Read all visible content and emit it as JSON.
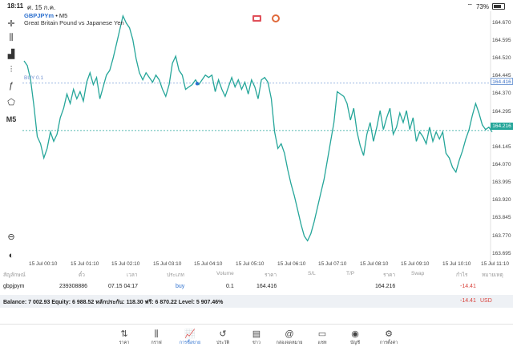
{
  "status_bar": {
    "time": "18:11",
    "date": "ศ. 15 ก.ค.",
    "battery": "73%"
  },
  "chart": {
    "symbol": "GBPJPYm",
    "timeframe": "M5",
    "symbol_line_sep": " • ",
    "description": "Great Britain Pound vs Japanese Yen",
    "timeframe_button": "M5",
    "buy_line_label": "BUY 0.1",
    "buy_price_tag": "164.416",
    "bid_price_tag": "164.216",
    "y_ticks": [
      "164.670",
      "164.595",
      "164.520",
      "164.445",
      "164.370",
      "164.295",
      "164.145",
      "164.070",
      "163.995",
      "163.920",
      "163.845",
      "163.770",
      "163.695"
    ],
    "x_ticks": [
      "15 Jul 00:10",
      "15 Jul 01:10",
      "15 Jul 02:10",
      "15 Jul 03:10",
      "15 Jul 04:10",
      "15 Jul 05:10",
      "15 Jul 06:10",
      "15 Jul 07:10",
      "15 Jul 08:10",
      "15 Jul 09:10",
      "15 Jul 10:10",
      "15 Jul 11:10"
    ],
    "colors": {
      "line": "#26a69a",
      "buy_line": "#7aa0d8",
      "bid_line": "#26a69a"
    }
  },
  "chart_data": {
    "type": "line",
    "series": [
      {
        "values": [
          164.51,
          164.49,
          164.43,
          164.32,
          164.19,
          164.16,
          164.1,
          164.14,
          164.21,
          164.17,
          164.2,
          164.27,
          164.31,
          164.37,
          164.33,
          164.39,
          164.35,
          164.38,
          164.34,
          164.42,
          164.46,
          164.41,
          164.44,
          164.35,
          164.4,
          164.45,
          164.47,
          164.52,
          164.58,
          164.64,
          164.7,
          164.67,
          164.65,
          164.6,
          164.52,
          164.46,
          164.43,
          164.46,
          164.44,
          164.42,
          164.45,
          164.43,
          164.39,
          164.36,
          164.41,
          164.5,
          164.53,
          164.47,
          164.45,
          164.39,
          164.4,
          164.41,
          164.43,
          164.41,
          164.43,
          164.45,
          164.44,
          164.45,
          164.38,
          164.43,
          164.39,
          164.36,
          164.4,
          164.44,
          164.4,
          164.43,
          164.39,
          164.42,
          164.37,
          164.43,
          164.4,
          164.35,
          164.43,
          164.44,
          164.42,
          164.35,
          164.21,
          164.14,
          164.16,
          164.12,
          164.05,
          163.99,
          163.94,
          163.88,
          163.82,
          163.77,
          163.75,
          163.78,
          163.83,
          163.89,
          163.95,
          164.01,
          164.09,
          164.17,
          164.25,
          164.38,
          164.37,
          164.36,
          164.33,
          164.26,
          164.31,
          164.21,
          164.15,
          164.11,
          164.2,
          164.25,
          164.17,
          164.23,
          164.3,
          164.22,
          164.27,
          164.31,
          164.2,
          164.23,
          164.29,
          164.25,
          164.3,
          164.22,
          164.27,
          164.17,
          164.21,
          164.19,
          164.16,
          164.23,
          164.17,
          164.21,
          164.18,
          164.21,
          164.12,
          164.1,
          164.06,
          164.04,
          164.09,
          164.13,
          164.18,
          164.22,
          164.28,
          164.33,
          164.29,
          164.24,
          164.22,
          164.23,
          164.21
        ]
      }
    ],
    "x_ticks": [
      "15 Jul 00:10",
      "15 Jul 01:10",
      "15 Jul 02:10",
      "15 Jul 03:10",
      "15 Jul 04:10",
      "15 Jul 05:10",
      "15 Jul 06:10",
      "15 Jul 07:10",
      "15 Jul 08:10",
      "15 Jul 09:10",
      "15 Jul 10:10",
      "15 Jul 11:10"
    ],
    "ylim": [
      163.65,
      164.72
    ],
    "horizontal_lines": [
      {
        "label": "BUY 0.1",
        "value": 164.416
      },
      {
        "value": 164.216
      }
    ],
    "grid": false
  },
  "table": {
    "headers": [
      "สัญลักษณ์",
      "ตั๋ว",
      "เวลา",
      "ประเภท",
      "Volume",
      "ราคา",
      "S/L",
      "T/P",
      "ราคา",
      "Swap",
      "กำไร",
      "หมายเหตุ"
    ],
    "row": {
      "symbol": "gbpjpym",
      "ticket": "239308886",
      "time": "07.15 04:17",
      "type": "buy",
      "volume": "0.1",
      "open_price": "164.416",
      "current_price": "164.216",
      "profit": "-14.41"
    }
  },
  "balance": {
    "text": "Balance: 7 002.93 Equity: 6 988.52 หลักประกัน: 118.30 ฟรี: 6 870.22 Level: 5 907.46%",
    "profit": "-14.41",
    "currency": "USD"
  },
  "tabs": [
    {
      "label": "ราคา",
      "icon": "updown-arrows-icon",
      "glyph": "⇅",
      "active": false
    },
    {
      "label": "กราฟ",
      "icon": "candles-icon",
      "glyph": "⫼",
      "active": false
    },
    {
      "label": "การซื้อขาย",
      "icon": "trade-chart-icon",
      "glyph": "📈",
      "active": true
    },
    {
      "label": "ประวัติ",
      "icon": "history-icon",
      "glyph": "↺",
      "active": false
    },
    {
      "label": "ข่าว",
      "icon": "news-icon",
      "glyph": "▤",
      "active": false
    },
    {
      "label": "กล่องจดหมาย",
      "icon": "mail-at-icon",
      "glyph": "@",
      "active": false
    },
    {
      "label": "แชท",
      "icon": "chat-icon",
      "glyph": "▭",
      "active": false
    },
    {
      "label": "บัญชี",
      "icon": "account-icon",
      "glyph": "◉",
      "active": false
    },
    {
      "label": "การตั้งค่า",
      "icon": "settings-gear-icon",
      "glyph": "⚙",
      "active": false
    }
  ],
  "toolbar": [
    {
      "icon": "crosshair-icon",
      "glyph": "✛"
    },
    {
      "icon": "candles-icon",
      "glyph": "⫼"
    },
    {
      "icon": "bar-indicators-icon",
      "glyph": "▟"
    },
    {
      "icon": "adjust-sliders-icon",
      "glyph": "⫶"
    },
    {
      "icon": "function-icon",
      "glyph": "ƒ"
    },
    {
      "icon": "shapes-icon",
      "glyph": "⬠"
    },
    {
      "icon": "timeframe-m5",
      "glyph": "M5"
    },
    {
      "icon": "zoom-icon",
      "glyph": "⊖"
    },
    {
      "icon": "app-logo-icon",
      "glyph": "◐"
    }
  ]
}
